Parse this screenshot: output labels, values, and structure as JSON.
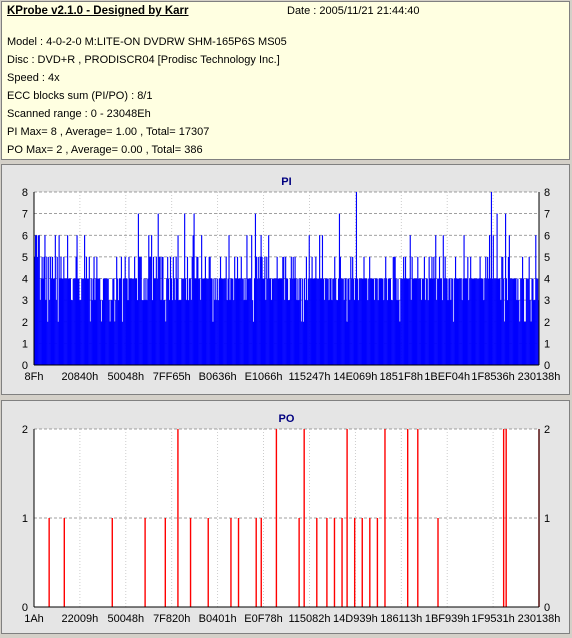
{
  "header": {
    "app_title": "KProbe v2.1.0 - Designed by Karr",
    "date": "Date : 2005/11/21 21:44:40",
    "lines": [
      "Model : 4-0-2-0 M:LITE-ON DVDRW SHM-165P6S MS05",
      "Disc : DVD+R , PRODISCR04 [Prodisc Technology Inc.]",
      "Speed : 4x",
      "ECC blocks sum (PI/PO) : 8/1",
      "Scanned range : 0 - 23048Eh",
      "PI Max= 8 , Average= 1.00 , Total= 17307",
      "PO Max= 2 , Average= 0.00 , Total= 386"
    ]
  },
  "chart_data": [
    {
      "type": "bar",
      "title": "PI",
      "color": "#0000ff",
      "ylim": [
        0,
        8
      ],
      "yticks": [
        0,
        1,
        2,
        3,
        4,
        5,
        6,
        7,
        8
      ],
      "xticks": [
        "8Fh",
        "20840h",
        "50048h",
        "7FF65h",
        "B0636h",
        "E1066h",
        "115247h",
        "14E069h",
        "1851F8h",
        "1BEF04h",
        "1F8536h",
        "230138h"
      ],
      "grid": true,
      "values": [
        5,
        6,
        6,
        5,
        6,
        6,
        3,
        4,
        5,
        4,
        5,
        6,
        3,
        5,
        2,
        5,
        3,
        5,
        4,
        5,
        4,
        4,
        6,
        3,
        5,
        2,
        6,
        4,
        5,
        4,
        4,
        5,
        4,
        4,
        4,
        6,
        4,
        4,
        4,
        3,
        3,
        4,
        4,
        4,
        5,
        6,
        4,
        4,
        3,
        3,
        4,
        4,
        4,
        6,
        4,
        5,
        4,
        4,
        5,
        2,
        4,
        3,
        4,
        5,
        3,
        4,
        5,
        4,
        4,
        4,
        3,
        2,
        3,
        4,
        4,
        4,
        4,
        4,
        4,
        3,
        2,
        3,
        3,
        4,
        4,
        2,
        3,
        5,
        4,
        3,
        4,
        4,
        5,
        2,
        4,
        4,
        5,
        4,
        4,
        3,
        5,
        4,
        4,
        4,
        4,
        4,
        5,
        4,
        4,
        3,
        7,
        5,
        5,
        5,
        3,
        3,
        4,
        3,
        4,
        3,
        4,
        6,
        5,
        5,
        6,
        3,
        5,
        4,
        4,
        5,
        4,
        7,
        5,
        5,
        3,
        5,
        5,
        3,
        3,
        2,
        4,
        5,
        4,
        3,
        5,
        4,
        3,
        5,
        4,
        3,
        5,
        4,
        6,
        3,
        3,
        3,
        4,
        4,
        4,
        7,
        4,
        3,
        5,
        3,
        4,
        4,
        3,
        5,
        6,
        7,
        4,
        4,
        5,
        5,
        4,
        4,
        3,
        6,
        4,
        4,
        4,
        5,
        4,
        4,
        4,
        5,
        5,
        4,
        4,
        2,
        4,
        3,
        4,
        3,
        4,
        3,
        4,
        5,
        4,
        4,
        4,
        4,
        4,
        5,
        3,
        4,
        6,
        3,
        4,
        4,
        4,
        3,
        5,
        4,
        4,
        5,
        4,
        4,
        4,
        5,
        4,
        4,
        3,
        4,
        3,
        6,
        4,
        4,
        4,
        4,
        6,
        3,
        2,
        4,
        7,
        5,
        4,
        5,
        4,
        5,
        6,
        5,
        4,
        4,
        5,
        3,
        5,
        4,
        6,
        4,
        4,
        3,
        4,
        4,
        4,
        4,
        4,
        5,
        4,
        4,
        4,
        4,
        4,
        5,
        5,
        3,
        5,
        4,
        4,
        3,
        3,
        4,
        5,
        4,
        5,
        4,
        5,
        4,
        3,
        4,
        3,
        4,
        4,
        2,
        4,
        2,
        4,
        3,
        5,
        3,
        4,
        6,
        4,
        4,
        5,
        4,
        4,
        4,
        5,
        4,
        4,
        4,
        6,
        4,
        4,
        6,
        4,
        3,
        4,
        4,
        4,
        4,
        3,
        4,
        4,
        3,
        4,
        4,
        5,
        4,
        3,
        3,
        4,
        7,
        5,
        4,
        4,
        4,
        3,
        4,
        4,
        2,
        4,
        4,
        3,
        5,
        4,
        5,
        4,
        3,
        4,
        8,
        4,
        3,
        4,
        4,
        4,
        4,
        4,
        5,
        4,
        4,
        4,
        3,
        4,
        5,
        4,
        4,
        4,
        4,
        3,
        4,
        4,
        4,
        3,
        4,
        4,
        4,
        4,
        4,
        3,
        4,
        5,
        4,
        3,
        4,
        4,
        4,
        3,
        3,
        5,
        5,
        5,
        4,
        3,
        4,
        3,
        2,
        4,
        4,
        4,
        5,
        4,
        5,
        4,
        4,
        4,
        4,
        6,
        3,
        5,
        4,
        4,
        4,
        4,
        4,
        5,
        4,
        4,
        4,
        3,
        4,
        4,
        5,
        3,
        4,
        4,
        3,
        5,
        4,
        4,
        5,
        4,
        5,
        4,
        6,
        3,
        4,
        4,
        5,
        4,
        4,
        3,
        6,
        4,
        5,
        4,
        4,
        3,
        4,
        4,
        3,
        4,
        4,
        2,
        4,
        5,
        4,
        4,
        4,
        4,
        4,
        4,
        3,
        4,
        6,
        4,
        4,
        4,
        5,
        3,
        4,
        5,
        4,
        4,
        4,
        4,
        4,
        4,
        4,
        4,
        4,
        5,
        4,
        4,
        4,
        3,
        4,
        5,
        4,
        5,
        4,
        6,
        4,
        8,
        4,
        6,
        4,
        4,
        4,
        7,
        4,
        4,
        4,
        3,
        5,
        5,
        4,
        2,
        7,
        4,
        3,
        5,
        6,
        4,
        4,
        4,
        4,
        4,
        4,
        4,
        3,
        4,
        3,
        2,
        4,
        4,
        5,
        4,
        2,
        2,
        4,
        4,
        4,
        5,
        3,
        2,
        4,
        4,
        3,
        3,
        6,
        4,
        4,
        3
      ],
      "y_right_ticks": true
    },
    {
      "type": "bar",
      "title": "PO",
      "color": "#ff0000",
      "ylim": [
        0,
        2
      ],
      "yticks": [
        0,
        1,
        2
      ],
      "xticks": [
        "1Ah",
        "22009h",
        "50048h",
        "7F820h",
        "B0401h",
        "E0F78h",
        "115082h",
        "14D939h",
        "186113h",
        "1BF939h",
        "1F9531h",
        "230138h"
      ],
      "grid": true,
      "values": [
        [
          0.06,
          1
        ],
        [
          0.12,
          1
        ],
        [
          0.31,
          1
        ],
        [
          0.44,
          1
        ],
        [
          0.52,
          1
        ],
        [
          0.57,
          2
        ],
        [
          0.62,
          1
        ],
        [
          0.69,
          1
        ],
        [
          0.78,
          1
        ],
        [
          0.81,
          1
        ],
        [
          0.88,
          1
        ],
        [
          0.9,
          1
        ],
        [
          0.96,
          2
        ],
        [
          1.05,
          1
        ],
        [
          1.07,
          2
        ],
        [
          1.12,
          1
        ],
        [
          1.16,
          1
        ],
        [
          1.19,
          1
        ],
        [
          1.22,
          1
        ],
        [
          1.24,
          2
        ],
        [
          1.27,
          1
        ],
        [
          1.3,
          1
        ],
        [
          1.33,
          1
        ],
        [
          1.36,
          1
        ],
        [
          1.39,
          2
        ],
        [
          1.48,
          2
        ],
        [
          1.52,
          2
        ],
        [
          1.6,
          1
        ],
        [
          1.86,
          2
        ],
        [
          1.87,
          2
        ],
        [
          2.0,
          2
        ]
      ],
      "x_domain": [
        0,
        2
      ],
      "y_right_ticks": true
    }
  ]
}
